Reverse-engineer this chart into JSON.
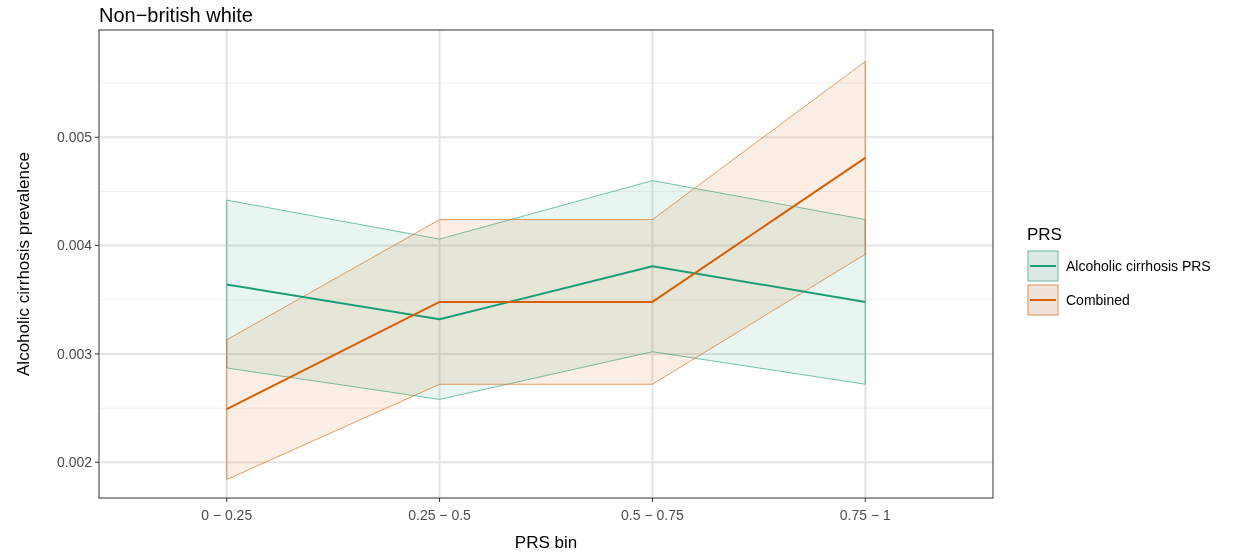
{
  "chart_data": {
    "type": "line",
    "title": "Non−british white",
    "xlabel": "PRS bin",
    "ylabel": "Alcoholic cirrhosis prevalence",
    "legend_title": "PRS",
    "categories": [
      "0 − 0.25",
      "0.25 − 0.5",
      "0.5 − 0.75",
      "0.75 − 1"
    ],
    "series": [
      {
        "name": "Alcoholic cirrhosis PRS",
        "color": "#1b9e77",
        "values": [
          0.00364,
          0.00332,
          0.00381,
          0.00348
        ],
        "lower": [
          0.00287,
          0.00258,
          0.00302,
          0.00272
        ],
        "upper": [
          0.00442,
          0.00406,
          0.0046,
          0.00424
        ]
      },
      {
        "name": "Combined",
        "color": "#d95f02",
        "values": [
          0.00249,
          0.00348,
          0.00348,
          0.00481
        ],
        "lower": [
          0.00184,
          0.00272,
          0.00272,
          0.00392
        ],
        "upper": [
          0.00313,
          0.00424,
          0.00424,
          0.0057
        ]
      }
    ],
    "ylim": [
      0.00167,
      0.00599
    ],
    "yticks": [
      0.002,
      0.003,
      0.004,
      0.005
    ],
    "grid": true,
    "legend": "right",
    "marker": "none",
    "line_style": "solid"
  }
}
